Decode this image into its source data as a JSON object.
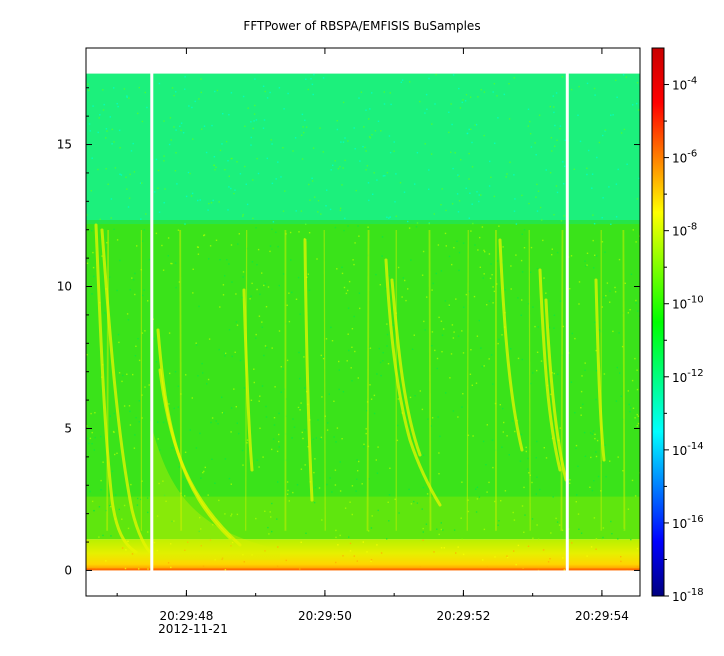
{
  "chart_data": {
    "type": "heatmap",
    "title": "FFTPower of RBSPA/EMFISIS  BuSamples",
    "xlabel": "",
    "ylabel": "",
    "x_date_label": "2012-11-21",
    "x_ticks": [
      "20:29:48",
      "20:29:50",
      "20:29:52",
      "20:29:54"
    ],
    "xlim": [
      "20:29:46.55",
      "20:29:54.55"
    ],
    "y_ticks": [
      0,
      5,
      10,
      15
    ],
    "ylim": [
      -0.9,
      18.4
    ],
    "data_frequency_range": [
      0,
      17.5
    ],
    "data_gaps": [
      "20:29:47.50",
      "20:29:53.50"
    ],
    "z_scale": "log",
    "zlim": [
      1e-18,
      0.001
    ],
    "colorbar_ticks": [
      {
        "value": 0.0001,
        "base": "10",
        "exp": "-4"
      },
      {
        "value": 1e-06,
        "base": "10",
        "exp": "-6"
      },
      {
        "value": 1e-08,
        "base": "10",
        "exp": "-8"
      },
      {
        "value": 1e-10,
        "base": "10",
        "exp": "-10"
      },
      {
        "value": 1e-12,
        "base": "10",
        "exp": "-12"
      },
      {
        "value": 1e-14,
        "base": "10",
        "exp": "-14"
      },
      {
        "value": 1e-16,
        "base": "10",
        "exp": "-16"
      },
      {
        "value": 1e-18,
        "base": "10",
        "exp": "-18"
      }
    ],
    "colormap": [
      "#00007f",
      "#0000ff",
      "#007fff",
      "#00ffff",
      "#00ff7f",
      "#00ff00",
      "#7fff00",
      "#ffff00",
      "#ff7f00",
      "#ff0000",
      "#c80000"
    ],
    "grid": false,
    "legend": "colorbar-right"
  }
}
